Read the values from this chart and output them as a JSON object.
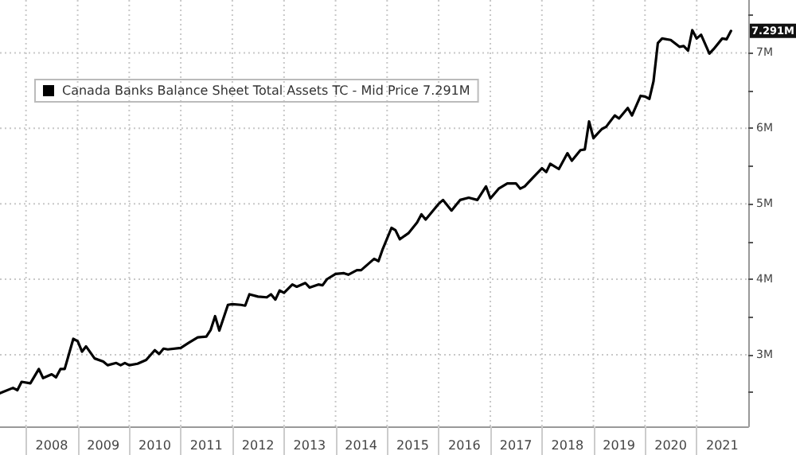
{
  "chart_data": {
    "type": "line",
    "legend": "top left",
    "grid": true,
    "line_style": "solid",
    "marker": "none",
    "xlim": [
      "2007-07",
      "2022-01"
    ],
    "xticks": [
      {
        "value": "2008-01",
        "label": null
      },
      {
        "value": "2008-07",
        "label": "2008"
      },
      {
        "value": "2009-01",
        "label": null
      },
      {
        "value": "2009-07",
        "label": "2009"
      },
      {
        "value": "2010-01",
        "label": null
      },
      {
        "value": "2010-07",
        "label": "2010"
      },
      {
        "value": "2011-01",
        "label": null
      },
      {
        "value": "2011-07",
        "label": "2011"
      },
      {
        "value": "2012-01",
        "label": null
      },
      {
        "value": "2012-07",
        "label": "2012"
      },
      {
        "value": "2013-01",
        "label": null
      },
      {
        "value": "2013-07",
        "label": "2013"
      },
      {
        "value": "2014-01",
        "label": null
      },
      {
        "value": "2014-07",
        "label": "2014"
      },
      {
        "value": "2015-01",
        "label": null
      },
      {
        "value": "2015-07",
        "label": "2015"
      },
      {
        "value": "2016-01",
        "label": null
      },
      {
        "value": "2016-07",
        "label": "2016"
      },
      {
        "value": "2017-01",
        "label": null
      },
      {
        "value": "2017-07",
        "label": "2017"
      },
      {
        "value": "2018-01",
        "label": null
      },
      {
        "value": "2018-07",
        "label": "2018"
      },
      {
        "value": "2019-01",
        "label": null
      },
      {
        "value": "2019-07",
        "label": "2019"
      },
      {
        "value": "2020-01",
        "label": null
      },
      {
        "value": "2020-07",
        "label": "2020"
      },
      {
        "value": "2021-01",
        "label": null
      },
      {
        "value": "2021-07",
        "label": "2021"
      }
    ],
    "ylim": [
      2.05,
      7.7
    ],
    "yticks": [
      {
        "value": 2.5,
        "label": null
      },
      {
        "value": 3,
        "label": "3M"
      },
      {
        "value": 3.5,
        "label": null
      },
      {
        "value": 4,
        "label": "4M"
      },
      {
        "value": 4.5,
        "label": null
      },
      {
        "value": 5,
        "label": "5M"
      },
      {
        "value": 5.5,
        "label": null
      },
      {
        "value": 6,
        "label": "6M"
      },
      {
        "value": 6.5,
        "label": null
      },
      {
        "value": 7,
        "label": "7M"
      },
      {
        "value": 7.5,
        "label": null
      }
    ],
    "annotations": [
      {
        "text": "7.291M",
        "x": "2021-09",
        "y": 7.291
      }
    ],
    "x": [
      "2007-07",
      "2007-10",
      "2007-11",
      "2007-12",
      "2008-02",
      "2008-04",
      "2008-05",
      "2008-07",
      "2008-08",
      "2008-09",
      "2008-10",
      "2008-12",
      "2009-01",
      "2009-02",
      "2009-03",
      "2009-05",
      "2009-07",
      "2009-08",
      "2009-10",
      "2009-11",
      "2009-12",
      "2010-01",
      "2010-03",
      "2010-05",
      "2010-07",
      "2010-08",
      "2010-09",
      "2010-10",
      "2011-01",
      "2011-03",
      "2011-05",
      "2011-07",
      "2011-08",
      "2011-09",
      "2011-10",
      "2011-12",
      "2012-01",
      "2012-03",
      "2012-04",
      "2012-05",
      "2012-07",
      "2012-09",
      "2012-10",
      "2012-11",
      "2012-12",
      "2013-01",
      "2013-03",
      "2013-04",
      "2013-06",
      "2013-07",
      "2013-09",
      "2013-10",
      "2013-11",
      "2014-01",
      "2014-03",
      "2014-04",
      "2014-06",
      "2014-07",
      "2014-10",
      "2014-11",
      "2014-12",
      "2015-02",
      "2015-03",
      "2015-04",
      "2015-06",
      "2015-08",
      "2015-09",
      "2015-10",
      "2016-01",
      "2016-02",
      "2016-04",
      "2016-06",
      "2016-08",
      "2016-10",
      "2016-12",
      "2017-01",
      "2017-03",
      "2017-05",
      "2017-07",
      "2017-08",
      "2017-09",
      "2017-11",
      "2018-01",
      "2018-02",
      "2018-03",
      "2018-05",
      "2018-07",
      "2018-08",
      "2018-10",
      "2018-11",
      "2018-12",
      "2019-01",
      "2019-03",
      "2019-04",
      "2019-06",
      "2019-07",
      "2019-09",
      "2019-10",
      "2019-12",
      "2020-01",
      "2020-02",
      "2020-03",
      "2020-04",
      "2020-05",
      "2020-07",
      "2020-09",
      "2020-10",
      "2020-11",
      "2020-12",
      "2021-01",
      "2021-02",
      "2021-04",
      "2021-05",
      "2021-07",
      "2021-08",
      "2021-09"
    ],
    "series": [
      {
        "name": "Canada Banks Balance Sheet Total Assets TC - Mid Price 7.291M",
        "color": "#000000",
        "values": [
          2.49,
          2.56,
          2.53,
          2.64,
          2.62,
          2.81,
          2.69,
          2.74,
          2.7,
          2.81,
          2.81,
          3.21,
          3.18,
          3.04,
          3.11,
          2.95,
          2.91,
          2.86,
          2.89,
          2.86,
          2.89,
          2.86,
          2.88,
          2.93,
          3.06,
          3.01,
          3.08,
          3.07,
          3.09,
          3.16,
          3.23,
          3.24,
          3.33,
          3.51,
          3.32,
          3.66,
          3.67,
          3.66,
          3.65,
          3.8,
          3.77,
          3.76,
          3.8,
          3.73,
          3.85,
          3.82,
          3.93,
          3.9,
          3.95,
          3.89,
          3.93,
          3.92,
          4.0,
          4.07,
          4.08,
          4.06,
          4.12,
          4.12,
          4.27,
          4.24,
          4.4,
          4.68,
          4.65,
          4.53,
          4.61,
          4.75,
          4.86,
          4.79,
          5.0,
          5.05,
          4.91,
          5.05,
          5.08,
          5.05,
          5.23,
          5.07,
          5.2,
          5.27,
          5.27,
          5.2,
          5.23,
          5.35,
          5.47,
          5.42,
          5.53,
          5.46,
          5.67,
          5.57,
          5.71,
          5.72,
          6.09,
          5.87,
          5.99,
          6.02,
          6.17,
          6.13,
          6.27,
          6.17,
          6.43,
          6.42,
          6.39,
          6.62,
          7.13,
          7.19,
          7.17,
          7.08,
          7.09,
          7.03,
          7.3,
          7.19,
          7.24,
          6.99,
          7.05,
          7.19,
          7.18,
          7.291
        ]
      }
    ]
  }
}
